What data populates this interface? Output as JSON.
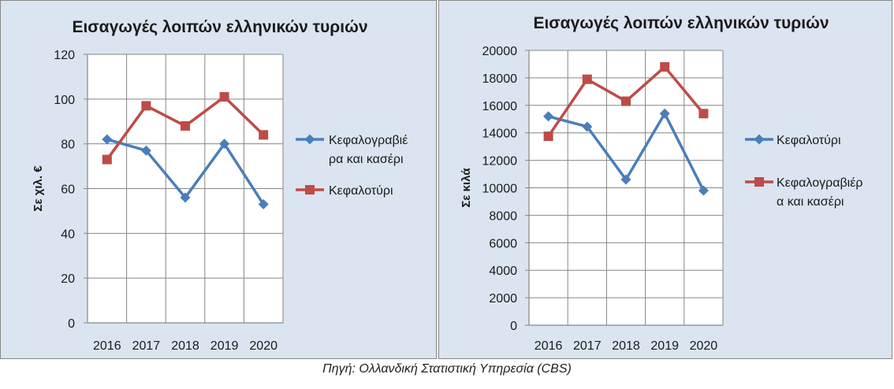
{
  "caption": "Πηγή: Ολλανδική Στατιστική Υπηρεσία (CBS)",
  "chart_data": [
    {
      "type": "line",
      "title": "Εισαγωγές λοιπών ελληνικών τυριών",
      "xlabel": "",
      "ylabel": "Σε χιλ. €",
      "categories": [
        "2016",
        "2017",
        "2018",
        "2019",
        "2020"
      ],
      "ylim": [
        0,
        120
      ],
      "ytick_step": 20,
      "yticks": [
        "0",
        "20",
        "40",
        "60",
        "80",
        "100",
        "120"
      ],
      "grid": true,
      "legend_position": "right",
      "series": [
        {
          "name": "Κεφαλογραβιέρα και κασέρι",
          "legend_lines": [
            "Κεφαλογραβιέ",
            "ρα και κασέρι"
          ],
          "marker": "diamond",
          "color": "#4a7ebb",
          "values": [
            82,
            77,
            56,
            80,
            53
          ]
        },
        {
          "name": "Κεφαλοτύρι",
          "legend_lines": [
            "Κεφαλοτύρι"
          ],
          "marker": "square",
          "color": "#be4b48",
          "values": [
            73,
            97,
            88,
            101,
            84
          ]
        }
      ]
    },
    {
      "type": "line",
      "title": "Εισαγωγές λοιπών ελληνικών τυριών",
      "xlabel": "",
      "ylabel": "Σε κιλά",
      "categories": [
        "2016",
        "2017",
        "2018",
        "2019",
        "2020"
      ],
      "ylim": [
        0,
        20000
      ],
      "ytick_step": 2000,
      "yticks": [
        "0",
        "2000",
        "4000",
        "6000",
        "8000",
        "10000",
        "12000",
        "14000",
        "16000",
        "18000",
        "20000"
      ],
      "grid": true,
      "legend_position": "right",
      "series": [
        {
          "name": "Κεφαλοτύρι",
          "legend_lines": [
            "Κεφαλοτύρι"
          ],
          "marker": "diamond",
          "color": "#4a7ebb",
          "values": [
            15200,
            14450,
            10600,
            15400,
            9800
          ]
        },
        {
          "name": "Κεφαλογραβιέρα και κασέρι",
          "legend_lines": [
            "Κεφαλογραβιέρ",
            "α και κασέρι"
          ],
          "marker": "square",
          "color": "#be4b48",
          "values": [
            13750,
            17900,
            16300,
            18800,
            15400
          ]
        }
      ]
    }
  ]
}
